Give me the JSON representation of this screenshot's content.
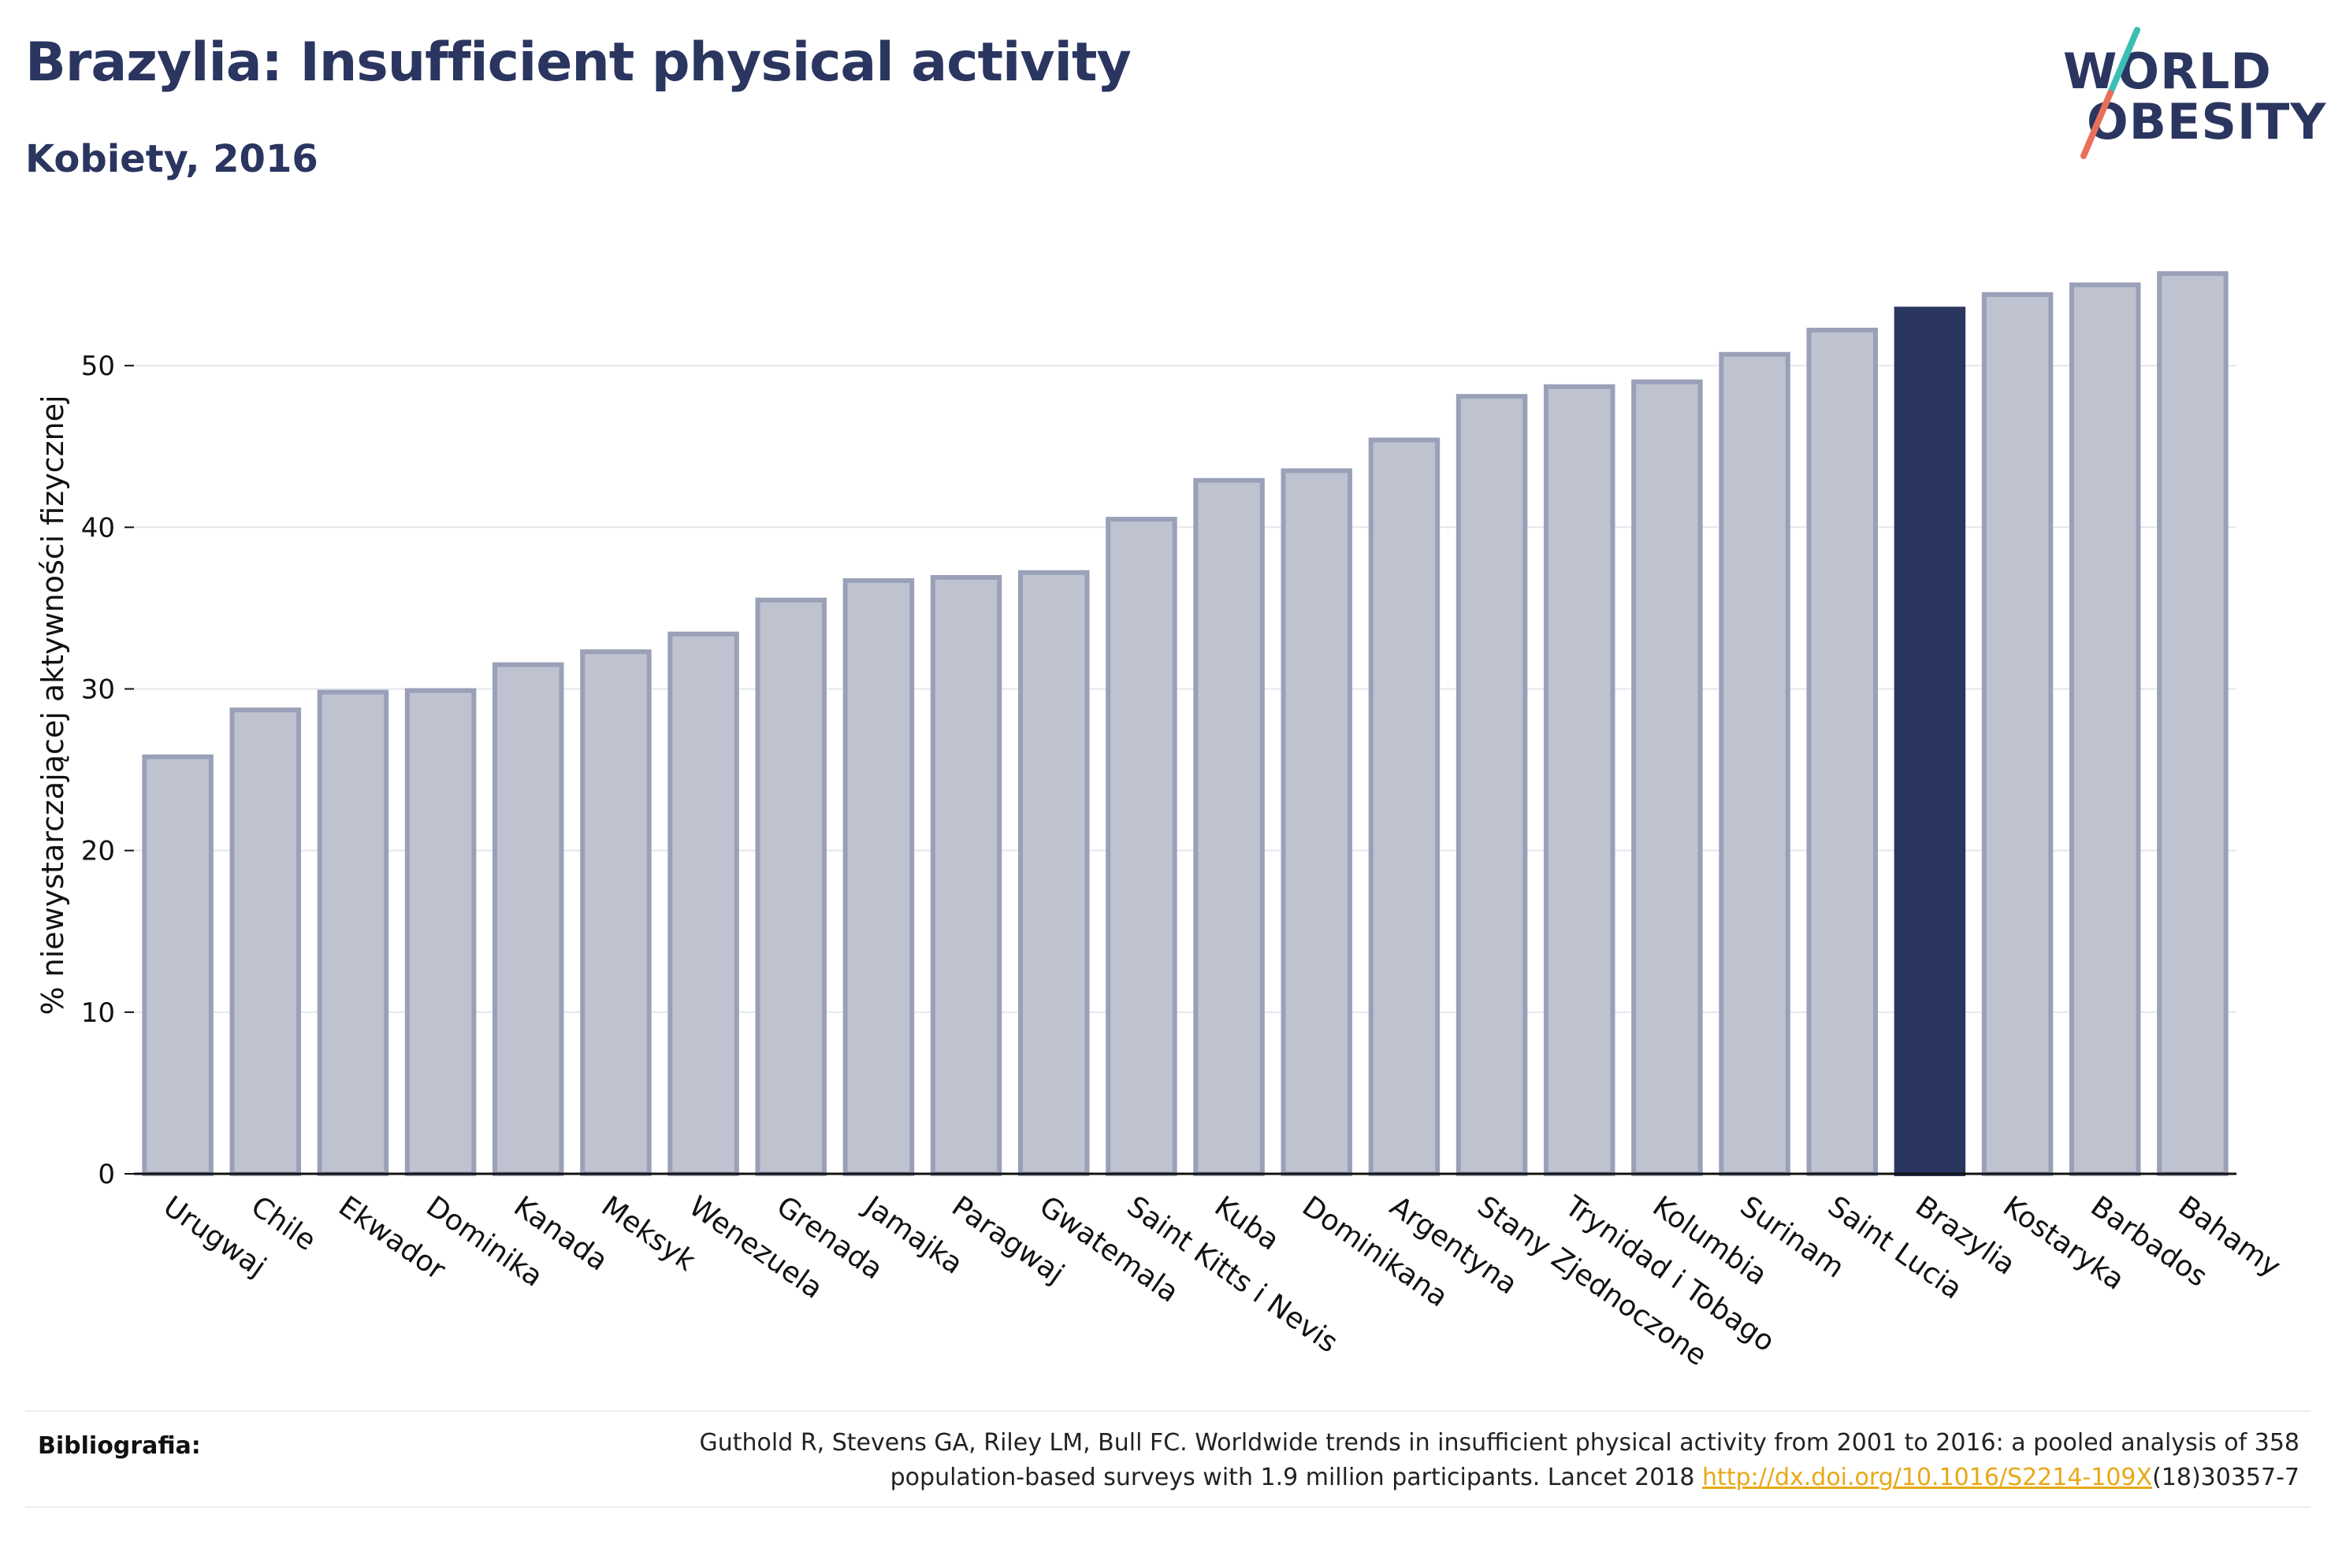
{
  "header": {
    "title": "Brazylia: Insufficient physical activity",
    "subtitle": "Kobiety, 2016"
  },
  "logo": {
    "line1": "WORLD",
    "line2": "OBESITY",
    "slash_colors": [
      "#3bbfb3",
      "#e8705a"
    ]
  },
  "chart_data": {
    "type": "bar",
    "ylabel": "% niewystarczającej aktywności fizycznej",
    "ylim": [
      0,
      58
    ],
    "yticks": [
      0,
      10,
      20,
      30,
      40,
      50
    ],
    "grid": true,
    "highlight": "Brazylia",
    "colors": {
      "bar": "#bfc3d0",
      "bar_border": "#9aa0b8",
      "highlight": "#2a3560"
    },
    "categories": [
      "Urugwaj",
      "Chile",
      "Ekwador",
      "Dominika",
      "Kanada",
      "Meksyk",
      "Wenezuela",
      "Grenada",
      "Jamajka",
      "Paragwaj",
      "Gwatemala",
      "Saint Kitts i Nevis",
      "Kuba",
      "Dominikana",
      "Argentyna",
      "Stany Zjednoczone",
      "Trynidad i Tobago",
      "Kolumbia",
      "Surinam",
      "Saint Lucia",
      "Brazylia",
      "Kostaryka",
      "Barbados",
      "Bahamy"
    ],
    "values": [
      25.8,
      28.7,
      29.8,
      29.9,
      31.5,
      32.3,
      33.4,
      35.5,
      36.7,
      36.9,
      37.2,
      40.5,
      42.9,
      43.5,
      45.4,
      48.1,
      48.7,
      49.0,
      50.7,
      52.2,
      53.5,
      54.4,
      55.0,
      55.7
    ]
  },
  "bibliography": {
    "label": "Bibliografia:",
    "line1": "Guthold R, Stevens GA, Riley LM, Bull FC. Worldwide trends in insufficient physical activity from 2001 to 2016: a pooled analysis of 358",
    "line2_prefix": "population-based surveys with 1.9 million participants. Lancet 2018 ",
    "link_text": "http://dx.doi.org/10.1016/S2214-109X",
    "line2_suffix": "(18)30357-7"
  }
}
